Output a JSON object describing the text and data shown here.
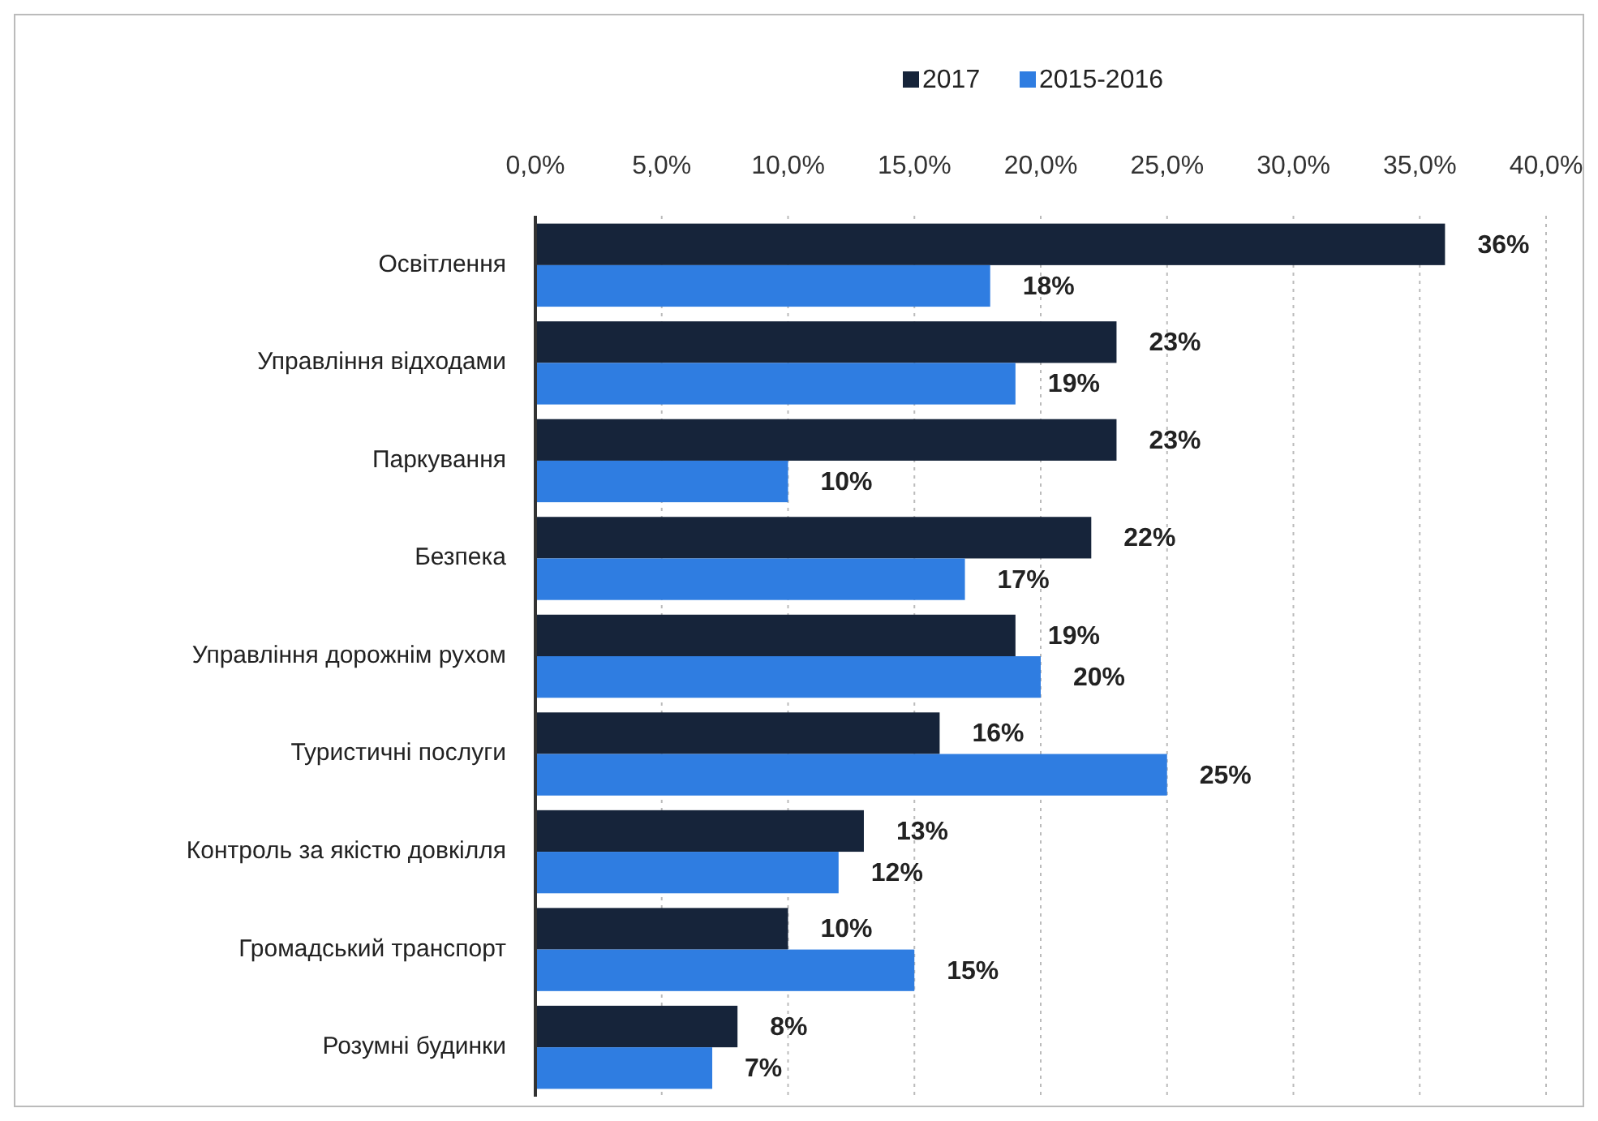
{
  "chart_data": {
    "type": "bar",
    "orientation": "horizontal",
    "categories": [
      "Освітлення",
      "Управління відходами",
      "Паркування",
      "Безпека",
      "Управління дорожнім рухом",
      "Туристичні послуги",
      "Контроль за якістю довкілля",
      "Громадський транспорт",
      "Розумні будинки"
    ],
    "series": [
      {
        "name": "2017",
        "color": "#16243a",
        "values": [
          36,
          23,
          23,
          22,
          19,
          16,
          13,
          10,
          8
        ],
        "value_labels": [
          "36%",
          "23%",
          "23%",
          "22%",
          "19%",
          "16%",
          "13%",
          "10%",
          "8%"
        ]
      },
      {
        "name": "2015-2016",
        "color": "#2f7de1",
        "values": [
          18,
          19,
          10,
          17,
          20,
          25,
          12,
          15,
          7
        ],
        "value_labels": [
          "18%",
          "19%",
          "10%",
          "17%",
          "20%",
          "25%",
          "12%",
          "15%",
          "7%"
        ]
      }
    ],
    "xlim": [
      0,
      40
    ],
    "xticks": [
      {
        "value": 0,
        "label": "0,0%"
      },
      {
        "value": 5,
        "label": "5,0%"
      },
      {
        "value": 10,
        "label": "10,0%"
      },
      {
        "value": 15,
        "label": "15,0%"
      },
      {
        "value": 20,
        "label": "20,0%"
      },
      {
        "value": 25,
        "label": "25,0%"
      },
      {
        "value": 30,
        "label": "30,0%"
      },
      {
        "value": 35,
        "label": "35,0%"
      },
      {
        "value": 40,
        "label": "40,0%"
      }
    ],
    "grid": "x",
    "legend": "top"
  }
}
